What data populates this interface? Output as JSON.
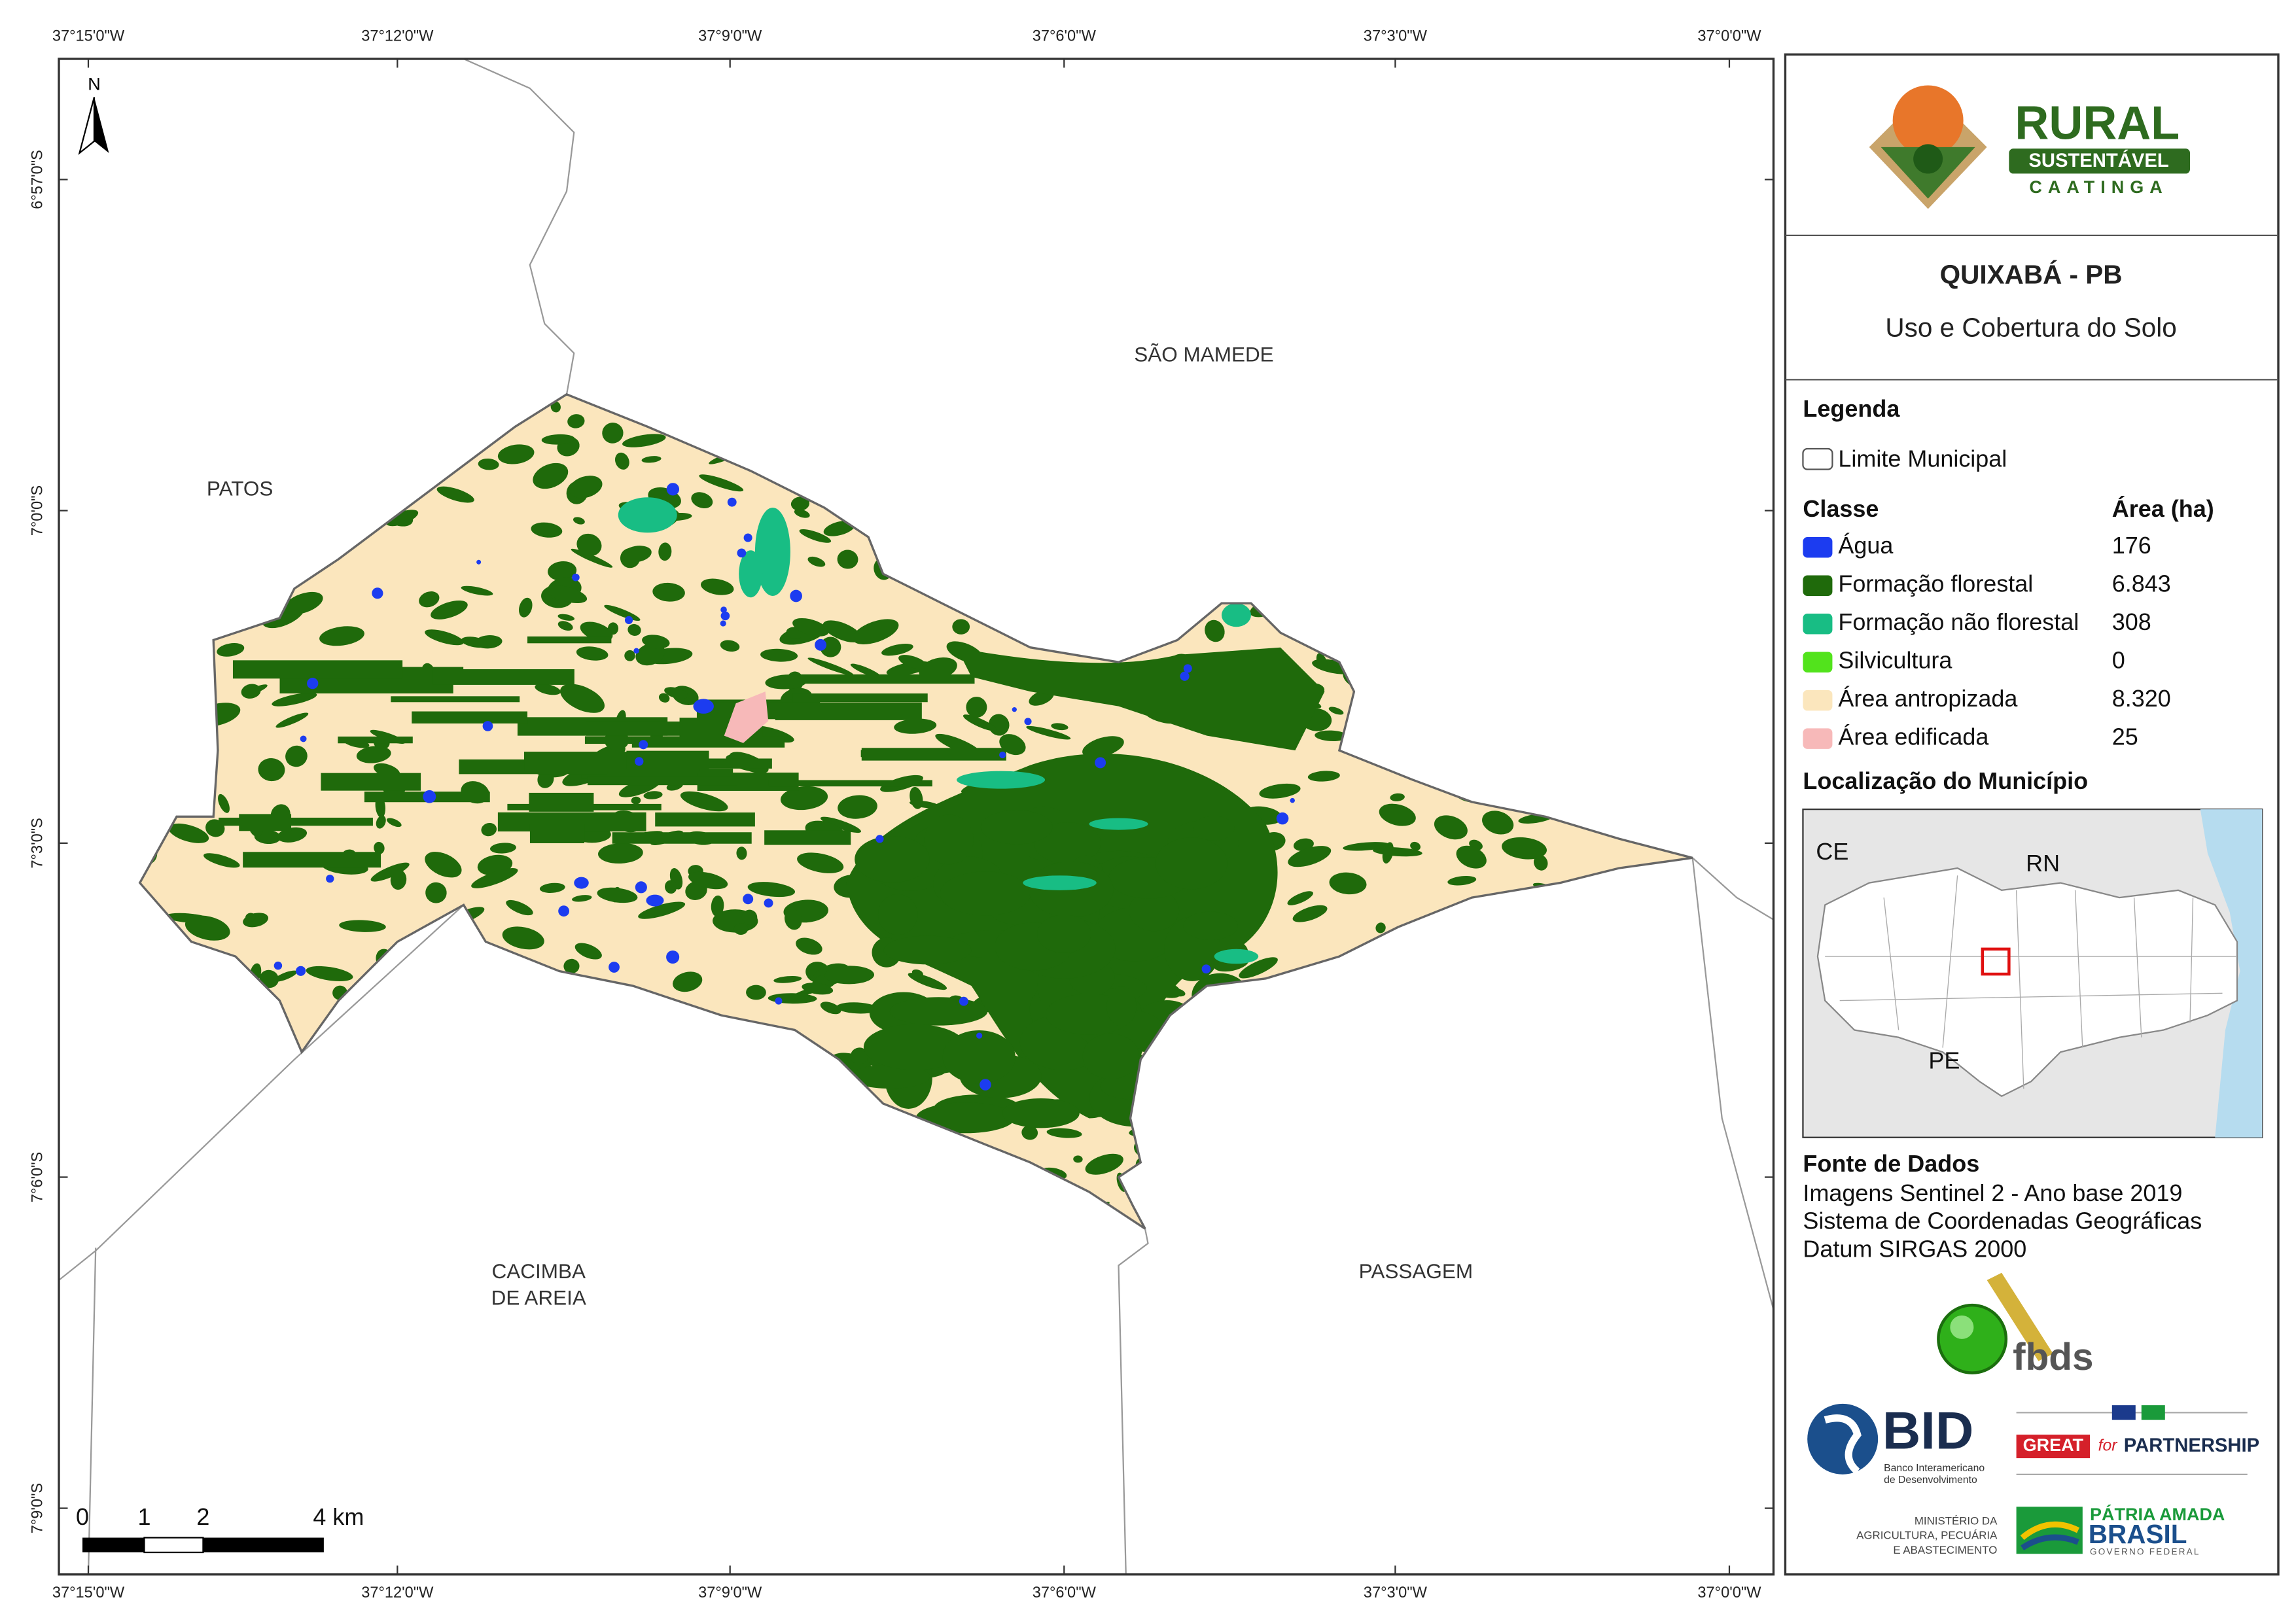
{
  "map": {
    "place_labels": [
      "PATOS",
      "SÃO MAMEDE",
      "CACIMBA",
      "DE AREIA",
      "PASSAGEM"
    ],
    "x_ticks": [
      "37°15'0\"W",
      "37°12'0\"W",
      "37°9'0\"W",
      "37°6'0\"W",
      "37°3'0\"W",
      "37°0'0\"W"
    ],
    "y_ticks": [
      "6°57'0\"S",
      "7°0'0\"S",
      "7°3'0\"S",
      "7°6'0\"S",
      "7°9'0\"S"
    ],
    "north": "N",
    "scale_bar": [
      "0",
      "1",
      "2",
      "4 km"
    ]
  },
  "header": {
    "logo": {
      "name": "RURAL",
      "subtitle": "SUSTENTÁVEL",
      "region": "CAATINGA"
    },
    "title": "QUIXABÁ - PB",
    "subtitle": "Uso e Cobertura do Solo"
  },
  "legend": {
    "title": "Legenda",
    "boundary": "Limite Municipal",
    "class_header": "Classe",
    "area_header": "Área (ha)",
    "classes": [
      {
        "name": "Água",
        "area": "176",
        "color": "#1c3cf0"
      },
      {
        "name": "Formação florestal",
        "area": "6.843",
        "color": "#1f6a0b"
      },
      {
        "name": "Formação não florestal",
        "area": "308",
        "color": "#18bd84"
      },
      {
        "name": "Silvicultura",
        "area": "0",
        "color": "#52e31c"
      },
      {
        "name": "Área antropizada",
        "area": "8.320",
        "color": "#fbe6bd"
      },
      {
        "name": "Área edificada",
        "area": "25",
        "color": "#f7b9b9"
      }
    ]
  },
  "location": {
    "title": "Localização do Município",
    "labels": [
      "CE",
      "RN",
      "PE"
    ]
  },
  "sources": {
    "title": "Fonte de Dados",
    "lines": [
      "Imagens Sentinel 2 - Ano base 2019",
      "Sistema de Coordenadas Geográficas",
      "Datum SIRGAS 2000"
    ]
  },
  "logos": {
    "fbds": "fbds",
    "bid": "BID",
    "bid_lines": [
      "Banco Interamericano",
      "de Desenvolvimento"
    ],
    "great": [
      "GREAT",
      "for",
      "PARTNERSHIP"
    ],
    "ministry": [
      "MINISTÉRIO DA",
      "AGRICULTURA, PECUÁRIA",
      "E ABASTECIMENTO"
    ],
    "brasil": [
      "PÁTRIA AMADA",
      "BRASIL",
      "GOVERNO FEDERAL"
    ]
  }
}
